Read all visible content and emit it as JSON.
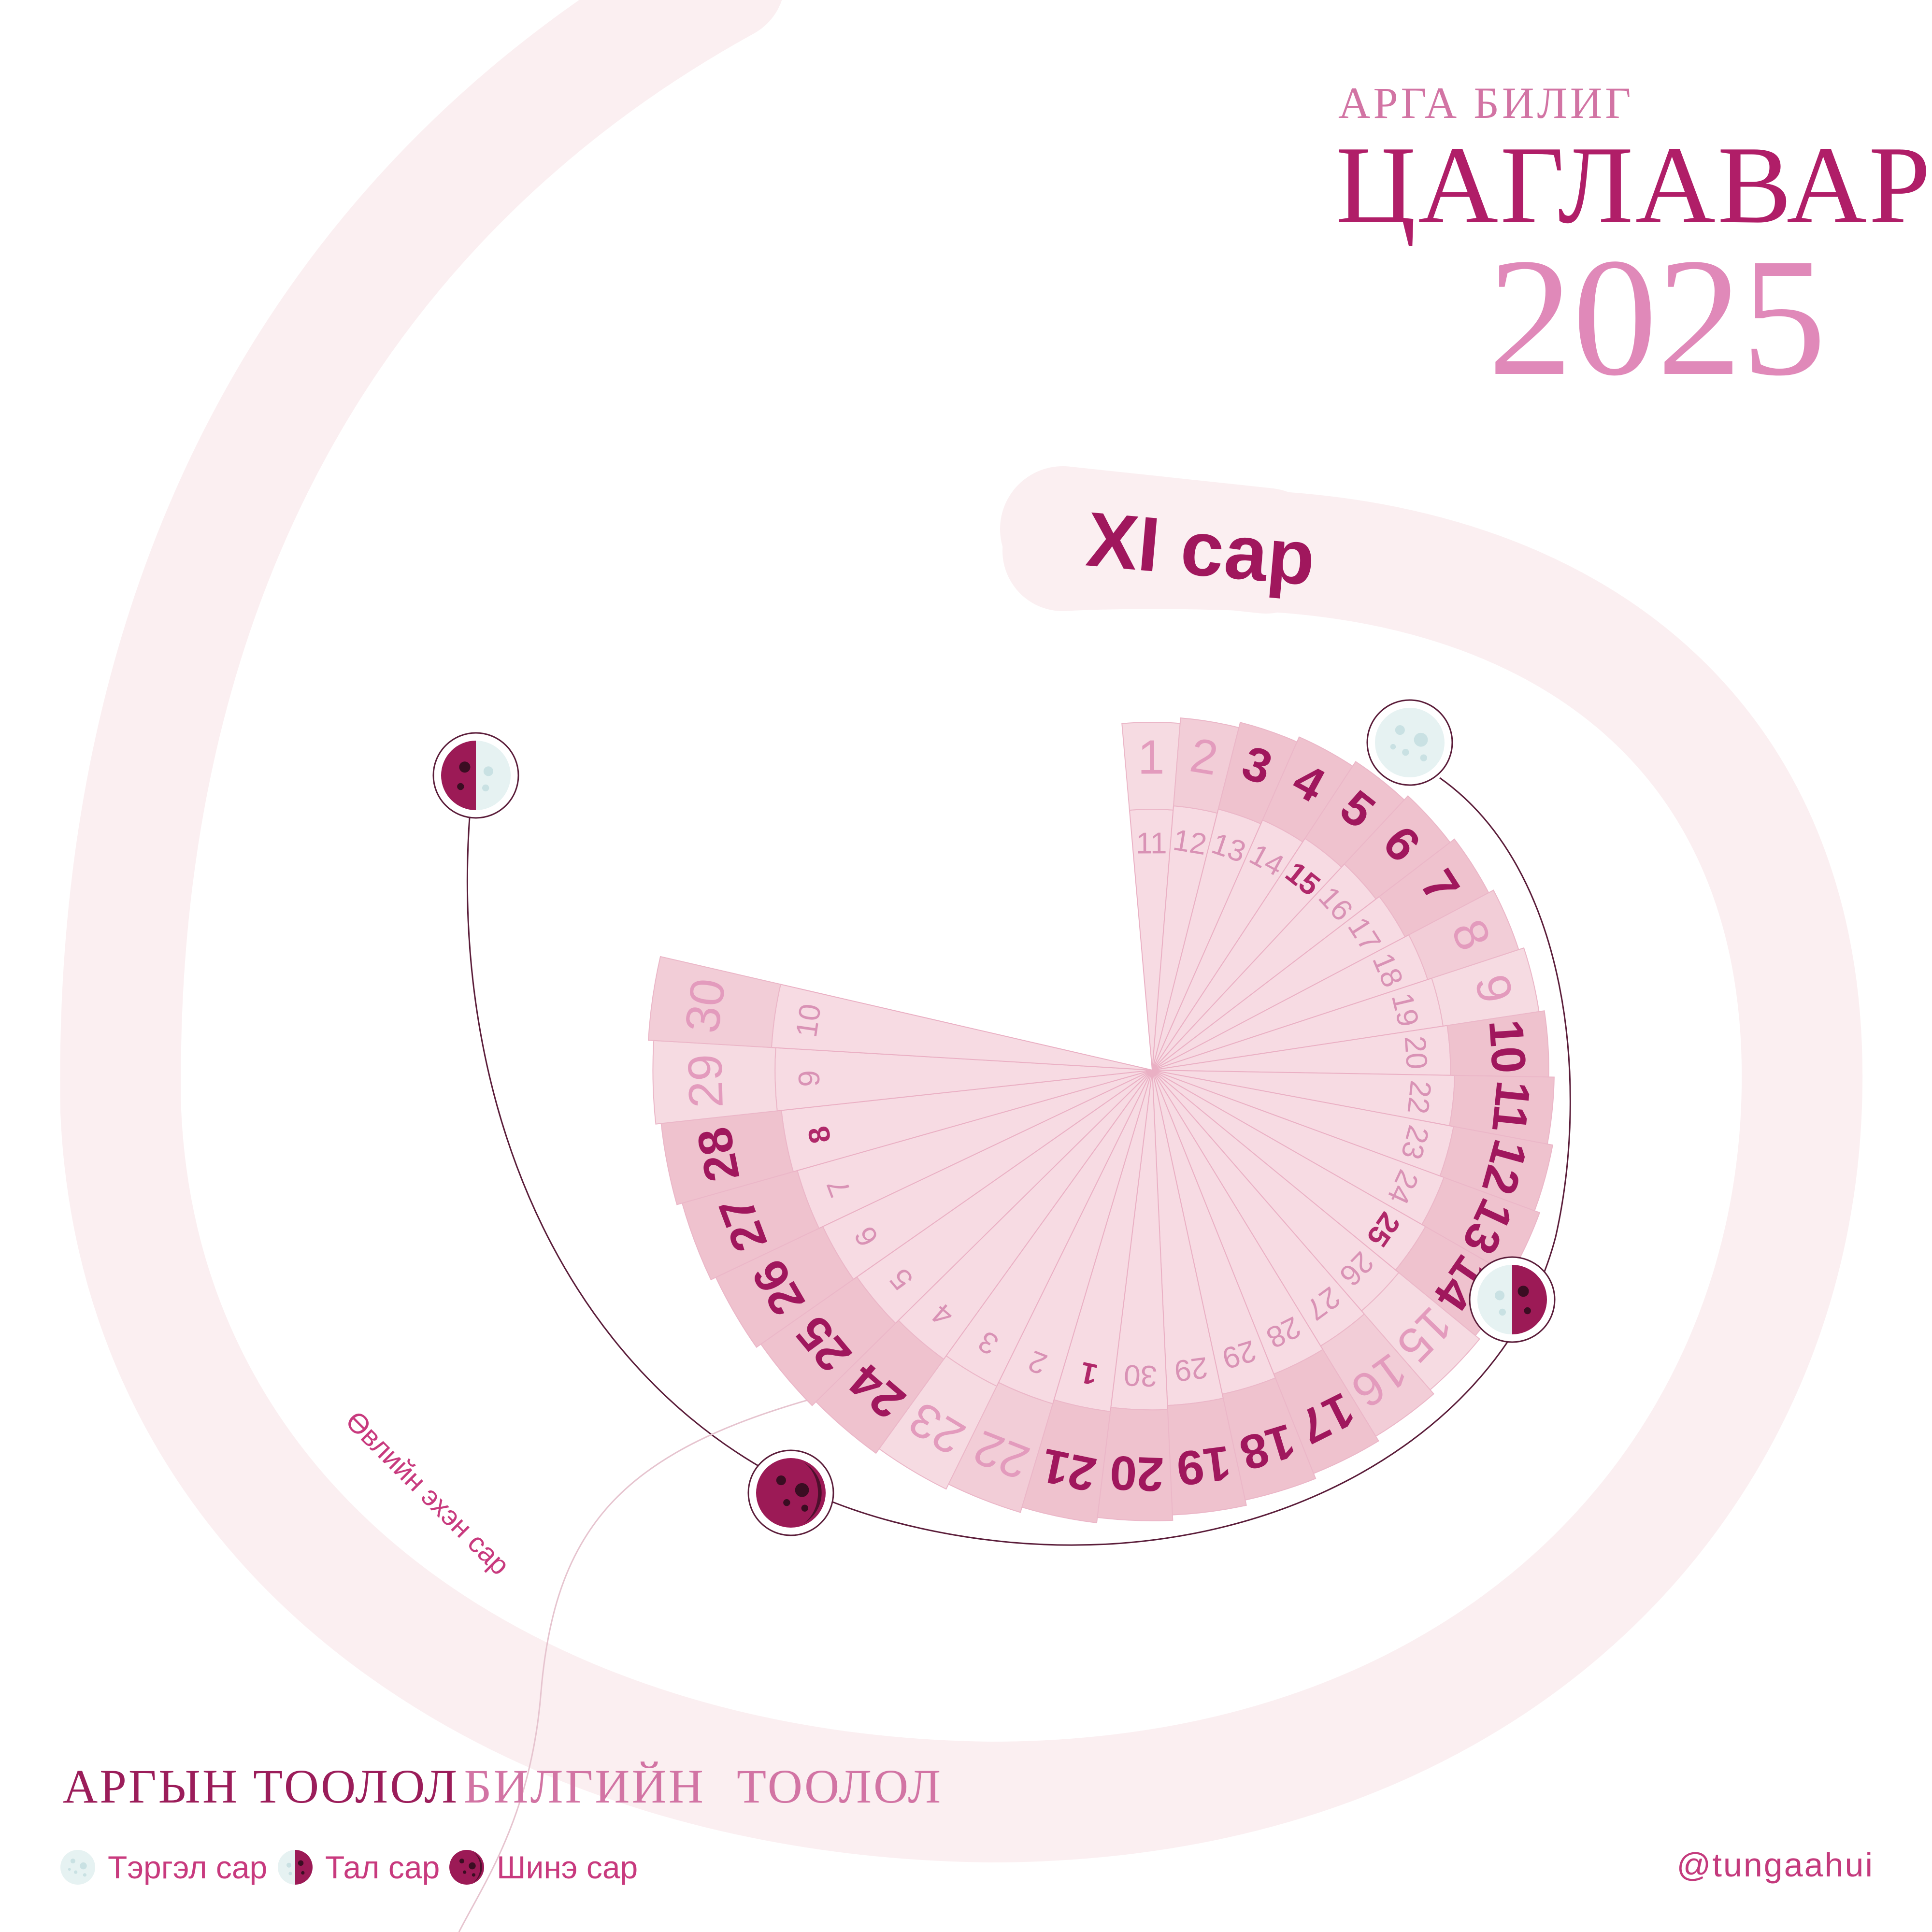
{
  "header": {
    "subtitle": "АРГА БИЛИГ",
    "title": "ЦАГЛАВАР",
    "year": "2025"
  },
  "month": {
    "label": "XI сар",
    "season_note": "Өвлийн эхэн сар"
  },
  "calendar": {
    "outer_days": [
      "1",
      "2",
      "3",
      "4",
      "5",
      "6",
      "7",
      "8",
      "9",
      "10",
      "11",
      "12",
      "13",
      "14",
      "15",
      "16",
      "17",
      "18",
      "19",
      "20",
      "21",
      "22",
      "23",
      "24",
      "25",
      "26",
      "27",
      "28",
      "29",
      "30"
    ],
    "outer_bold": [
      false,
      false,
      true,
      true,
      true,
      true,
      true,
      false,
      false,
      true,
      true,
      true,
      true,
      true,
      false,
      false,
      true,
      true,
      true,
      true,
      true,
      false,
      false,
      true,
      true,
      true,
      true,
      true,
      false,
      false
    ],
    "inner_days": [
      "11",
      "12",
      "13",
      "14",
      "15",
      "16",
      "17",
      "18",
      "19",
      "20",
      "22",
      "23",
      "24",
      "25",
      "26",
      "27",
      "28",
      "29",
      "29",
      "30",
      "1",
      "2",
      "3",
      "4",
      "5",
      "6",
      "7",
      "8",
      "9",
      "10"
    ],
    "inner_bold": [
      false,
      false,
      false,
      false,
      true,
      false,
      false,
      false,
      false,
      false,
      false,
      false,
      false,
      true,
      false,
      false,
      false,
      false,
      false,
      false,
      true,
      false,
      false,
      false,
      false,
      false,
      false,
      true,
      false,
      false
    ],
    "moon_phases": [
      {
        "type": "full-moon",
        "label": "Тэргэл сар"
      },
      {
        "type": "half-moon-right",
        "label": "Тал сар"
      },
      {
        "type": "new-moon",
        "label": "Шинэ сар"
      },
      {
        "type": "half-moon-left",
        "label": "Тал сар"
      }
    ]
  },
  "footer": {
    "argyn": "АРГЫН ТООЛОЛ",
    "bilig_1": "БИЛГИЙН",
    "bilig_2": "ТООЛОЛ",
    "handle": "@tungaahui"
  },
  "legend": [
    {
      "icon": "full-moon-icon",
      "label": "Тэргэл сар"
    },
    {
      "icon": "half-moon-icon",
      "label": "Тал сар"
    },
    {
      "icon": "new-moon-icon",
      "label": "Шинэ сар"
    }
  ],
  "colors": {
    "primary": "#b01e68",
    "accent": "#e089b9",
    "petal_light": "#f6dbe2",
    "petal_mid": "#f2cdd7",
    "petal_dark": "#efc2ce",
    "spiral": "#fbeef0",
    "moon_dark": "#9c1a56",
    "moon_light": "#e4f1f1"
  }
}
